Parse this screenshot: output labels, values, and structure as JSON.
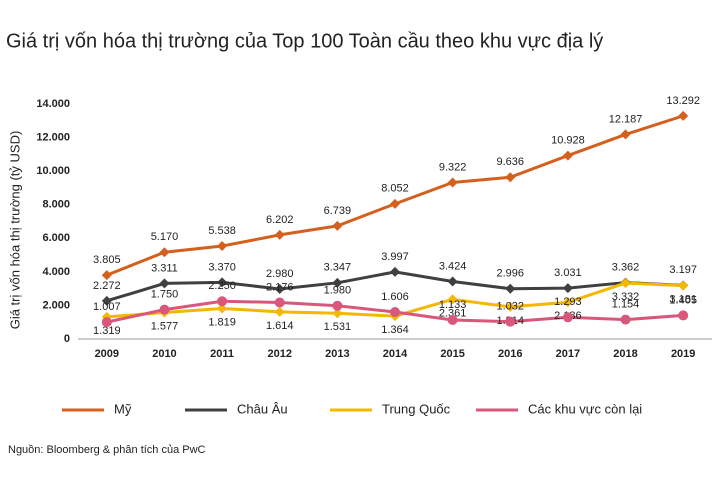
{
  "chart_data": {
    "type": "line",
    "title": "Giá trị vốn hóa thị trường của Top 100 Toàn cầu theo khu vực địa lý",
    "y_label": "Giá trị vốn hóa thị trường (tỷ USD)",
    "source": "Nguồn: Bloomberg & phân tích của PwC",
    "categories": [
      "2009",
      "2010",
      "2011",
      "2012",
      "2013",
      "2014",
      "2015",
      "2016",
      "2017",
      "2018",
      "2019"
    ],
    "ylim": [
      0,
      14000
    ],
    "yticks": [
      0,
      {
        "value": 2000,
        "label": "2.000"
      },
      {
        "value": 4000,
        "label": "4.000"
      },
      {
        "value": 6000,
        "label": "6.000"
      },
      {
        "value": 8000,
        "label": "8.000"
      },
      {
        "value": 10000,
        "label": "10.000"
      },
      {
        "value": 12000,
        "label": "12.000"
      },
      {
        "value": 14000,
        "label": "14.000"
      }
    ],
    "grid": false,
    "legend": "bottom",
    "series": [
      {
        "name": "Mỹ",
        "color": "#d4601e",
        "marker": "diamond",
        "label_pos": "above",
        "values": [
          3805,
          5170,
          5538,
          6202,
          6739,
          8052,
          9322,
          9636,
          10928,
          12187,
          13292
        ],
        "value_labels": [
          "3.805",
          "5.170",
          "5.538",
          "6.202",
          "6.739",
          "8.052",
          "9.322",
          "9.636",
          "10.928",
          "12.187",
          "13.292"
        ]
      },
      {
        "name": "Châu Âu",
        "color": "#404040",
        "marker": "diamond",
        "label_pos": "above",
        "values": [
          2272,
          3311,
          3370,
          2980,
          3347,
          3997,
          3424,
          2996,
          3031,
          3362,
          3197
        ],
        "value_labels": [
          "2.272",
          "3.311",
          "3.370",
          "2.980",
          "3.347",
          "3.997",
          "3.424",
          "2.996",
          "3.031",
          "3.362",
          "3.197"
        ]
      },
      {
        "name": "Trung Quốc",
        "color": "#f5b800",
        "marker": "diamond",
        "label_pos": "below",
        "values": [
          1319,
          1577,
          1819,
          1614,
          1531,
          1364,
          2361,
          1914,
          2186,
          3332,
          3181
        ],
        "value_labels": [
          "1.319",
          "1.577",
          "1.819",
          "1.614",
          "1.531",
          "1.364",
          "2.361",
          "1.914",
          "2.186",
          "3.332",
          "3.181"
        ]
      },
      {
        "name": "Các khu vực còn lại",
        "color": "#d9577a",
        "marker": "circle",
        "label_pos": "above",
        "values": [
          1007,
          1750,
          2250,
          2176,
          1980,
          1606,
          1133,
          1032,
          1293,
          1154,
          1405
        ],
        "value_labels": [
          "1.007",
          "1.750",
          "2.250",
          "2.176",
          "1.980",
          "1.606",
          "1.133",
          "1.032",
          "1.293",
          "1.154",
          "1.405"
        ]
      }
    ]
  }
}
